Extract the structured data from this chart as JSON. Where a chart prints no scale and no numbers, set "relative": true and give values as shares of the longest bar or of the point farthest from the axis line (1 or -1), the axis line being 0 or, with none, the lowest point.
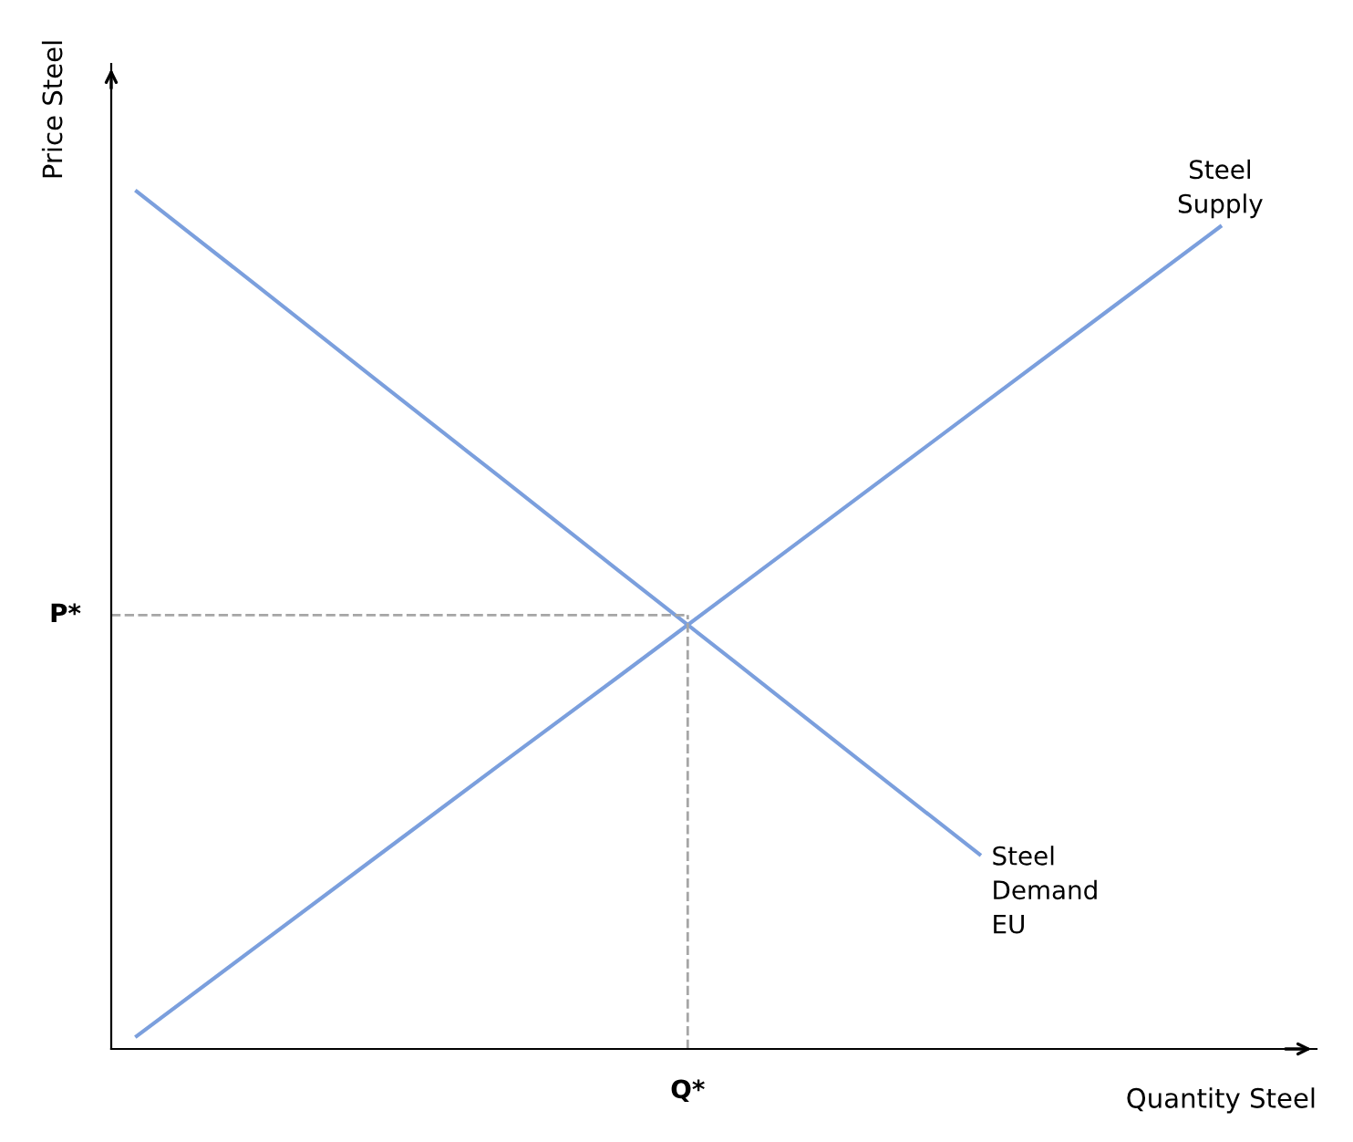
{
  "chart_data": {
    "type": "line",
    "relative": true,
    "xlabel": "Quantity Steel",
    "ylabel": "Price Steel",
    "categories": [
      null,
      null,
      null,
      null,
      null,
      null,
      null,
      null,
      null,
      null
    ],
    "series": [
      {
        "name": "Steel\nSupply",
        "color": "#7b9fdd",
        "values": [
          0.015,
          0.12,
          0.225,
          0.33,
          0.434,
          0.539,
          0.644,
          0.749,
          0.854,
          0.959
        ]
      },
      {
        "name": "Steel\nDemand\nEU",
        "color": "#7b9fdd",
        "values": [
          1,
          0.89,
          0.779,
          0.669,
          0.558,
          0.448,
          0.337,
          0.227,
          null,
          null
        ]
      }
    ],
    "ref_lines": [
      {
        "axis": "y",
        "value": 0.506,
        "label": "P*",
        "color": "#a6a6a6",
        "line_style": "dashed"
      }
    ],
    "annotations": [
      "Q*"
    ],
    "legend": false,
    "marker": "none",
    "line_style": "solid"
  }
}
